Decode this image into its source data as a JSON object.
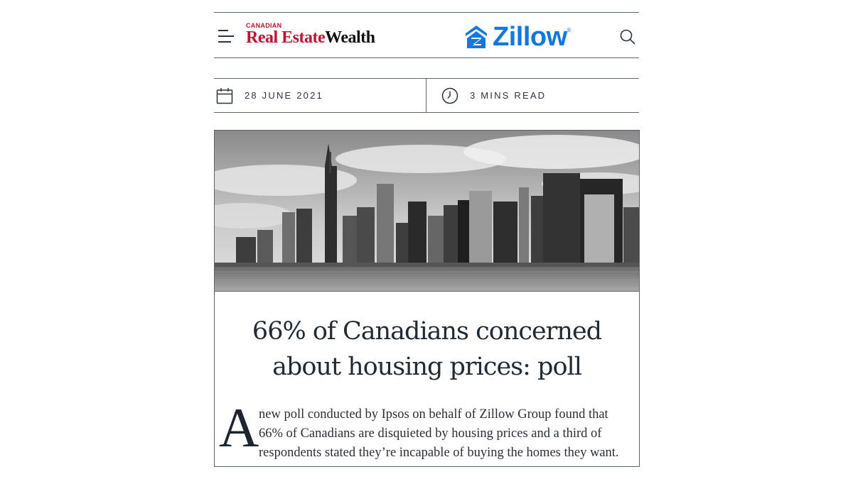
{
  "header": {
    "menu_icon": "hamburger-menu-icon",
    "logo_small": "CANADIAN",
    "logo_real_estate": "Real Estate",
    "logo_wealth": "Wealth",
    "partner_logo": "Zillow",
    "partner_logo_registered": "®",
    "search_icon": "search-icon",
    "brand_red": "#c8102e",
    "partner_blue": "#1277e1"
  },
  "meta": {
    "date": "28 JUNE 2021",
    "date_icon": "calendar-icon",
    "read_time": "3 MINS READ",
    "read_time_icon": "clock-icon"
  },
  "article": {
    "hero_image": "black-and-white-city-skyline-photo",
    "title": "66% of Canadians concerned about housing prices: poll",
    "dropcap": "A",
    "lede": "new poll conducted by Ipsos on behalf of Zillow Group found that 66% of Canadians are disquieted by housing prices and a third of respondents stated they’re incapable of buying the homes they want."
  }
}
